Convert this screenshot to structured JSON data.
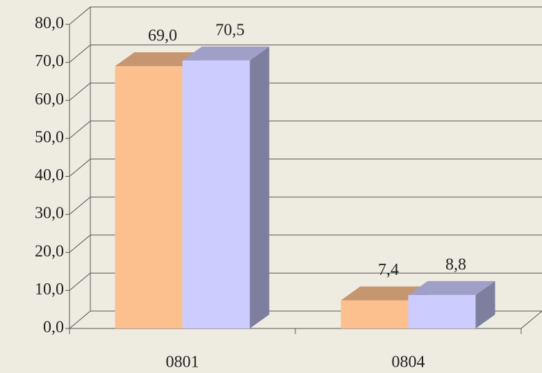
{
  "chart_data": {
    "type": "bar3d",
    "categories": [
      "0801",
      "0804"
    ],
    "series": [
      {
        "color": "#fcc08f",
        "values": [
          69.0,
          7.4
        ],
        "value_labels": [
          "69,0",
          "7,4"
        ]
      },
      {
        "color": "#ccccff",
        "values": [
          70.5,
          8.8
        ],
        "value_labels": [
          "70,5",
          "8,8"
        ]
      }
    ],
    "ylim": [
      0,
      80
    ],
    "yticks": [
      {
        "value": 0,
        "label": "0,0"
      },
      {
        "value": 10,
        "label": "10,0"
      },
      {
        "value": 20,
        "label": "20,0"
      },
      {
        "value": 30,
        "label": "30,0"
      },
      {
        "value": 40,
        "label": "40,0"
      },
      {
        "value": 50,
        "label": "50,0"
      },
      {
        "value": 60,
        "label": "60,0"
      },
      {
        "value": 70,
        "label": "70,0"
      },
      {
        "value": 80,
        "label": "80,0"
      }
    ],
    "grid": true
  }
}
